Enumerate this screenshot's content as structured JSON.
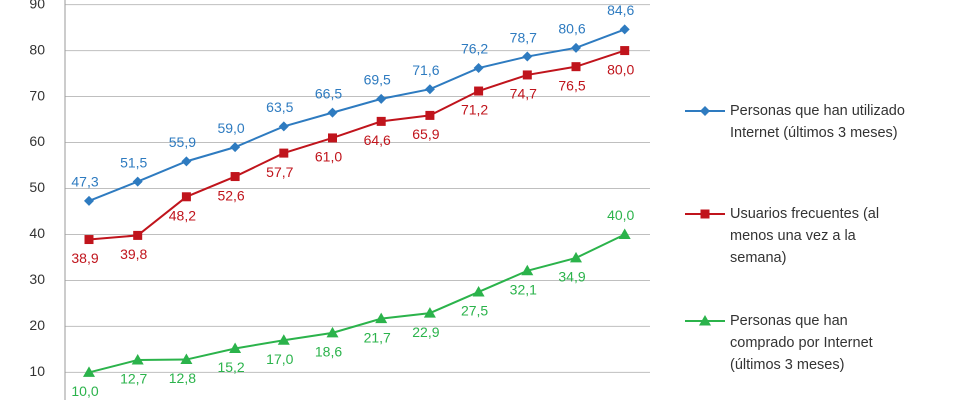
{
  "chart_data": {
    "type": "line",
    "categories": [
      null,
      null,
      null,
      null,
      null,
      null,
      null,
      null,
      null,
      null,
      null,
      null
    ],
    "ylim": [
      4,
      91
    ],
    "yticks": [
      10,
      20,
      30,
      40,
      50,
      60,
      70,
      80,
      90
    ],
    "grid": true,
    "legend": "right",
    "series": [
      {
        "name": "Personas que han utilizado Internet (últimos 3 meses)",
        "color": "#2e7bc0",
        "marker": "diamond",
        "label_side": "above",
        "values": [
          47.3,
          51.5,
          55.9,
          59.0,
          63.5,
          66.5,
          69.5,
          71.6,
          76.2,
          78.7,
          80.6,
          84.6
        ],
        "value_labels": [
          "47,3",
          "51,5",
          "55,9",
          "59,0",
          "63,5",
          "66,5",
          "69,5",
          "71,6",
          "76,2",
          "78,7",
          "80,6",
          "84,6"
        ]
      },
      {
        "name": "Usuarios frecuentes (al menos una vez a la semana)",
        "color": "#c0141c",
        "marker": "square",
        "label_side": "below",
        "values": [
          38.9,
          39.8,
          48.2,
          52.6,
          57.7,
          61.0,
          64.6,
          65.9,
          71.2,
          74.7,
          76.5,
          80.0
        ],
        "value_labels": [
          "38,9",
          "39,8",
          "48,2",
          "52,6",
          "57,7",
          "61,0",
          "64,6",
          "65,9",
          "71,2",
          "74,7",
          "76,5",
          "80,0"
        ]
      },
      {
        "name": "Personas que han comprado por Internet (últimos 3 meses)",
        "color": "#2bb34b",
        "marker": "triangle",
        "label_side": "below",
        "values": [
          10.0,
          12.7,
          12.8,
          15.2,
          17.0,
          18.6,
          21.7,
          22.9,
          27.5,
          32.1,
          34.9,
          40.0
        ],
        "value_labels": [
          "10,0",
          "12,7",
          "12,8",
          "15,2",
          "17,0",
          "18,6",
          "21,7",
          "22,9",
          "27,5",
          "32,1",
          "34,9",
          "40,0"
        ]
      }
    ]
  }
}
